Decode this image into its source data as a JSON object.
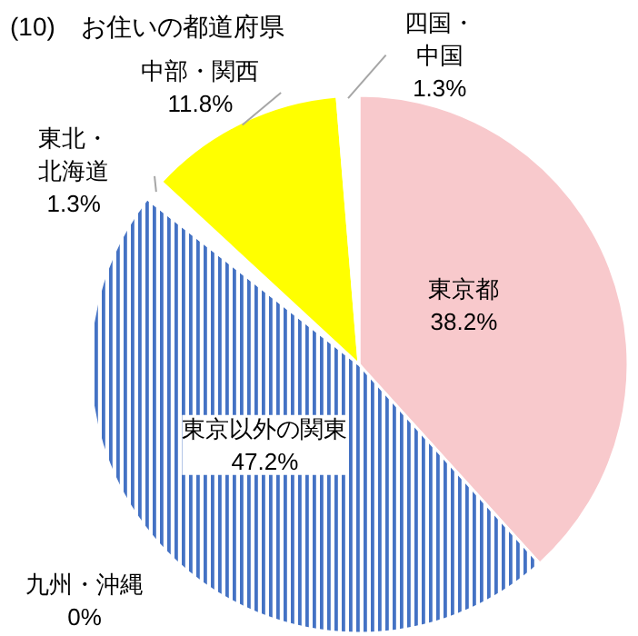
{
  "chart_data": {
    "type": "pie",
    "title": "(10)　お住いの都道府県",
    "categories": [
      "東京都",
      "東京以外の関東",
      "九州・沖縄",
      "東北・北海道",
      "中部・関西",
      "四国・中国"
    ],
    "value_labels": [
      "38.2%",
      "47.2%",
      "0%",
      "1.3%",
      "11.8%",
      "1.3%"
    ],
    "values": [
      38.2,
      47.2,
      0,
      1.3,
      11.8,
      1.3
    ],
    "colors": [
      "#f8c9cc",
      "#4472c4",
      "#ffffff",
      "#ffffff",
      "#ffff00",
      "#ffffff"
    ]
  }
}
